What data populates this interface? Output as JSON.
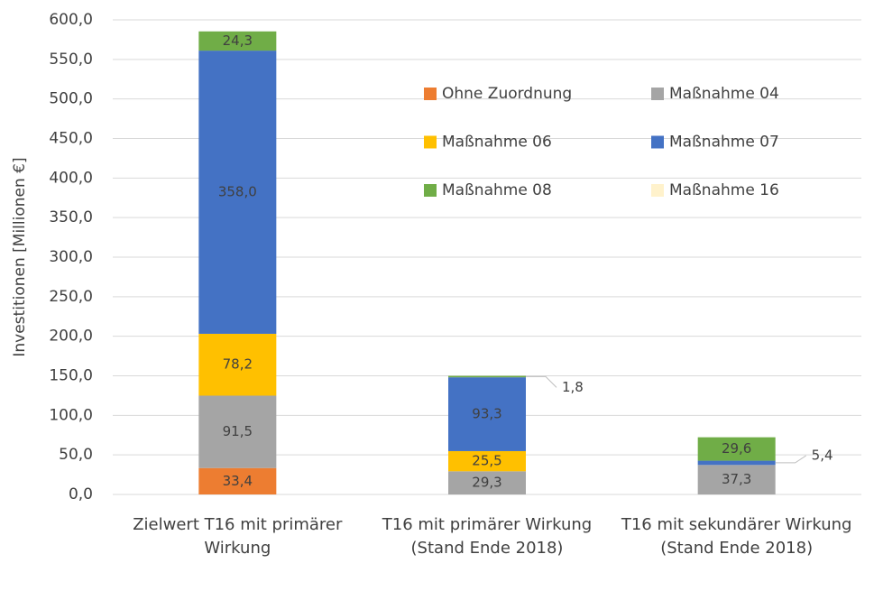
{
  "chart_data": {
    "type": "bar",
    "stacked": true,
    "y_label": "Investitionen [Millionen €]",
    "categories": [
      "Zielwert T16 mit primärer Wirkung",
      "T16 mit primärer Wirkung (Stand Ende 2018)",
      "T16 mit sekundärer Wirkung (Stand Ende 2018)"
    ],
    "series": [
      {
        "name": "Ohne Zuordnung",
        "color": "#ed7d31",
        "values": [
          33.4,
          null,
          null
        ],
        "value_labels": [
          "33,4",
          null,
          null
        ]
      },
      {
        "name": "Maßnahme 04",
        "color": "#a5a5a5",
        "values": [
          91.5,
          29.3,
          37.3
        ],
        "value_labels": [
          "91,5",
          "29,3",
          "37,3"
        ]
      },
      {
        "name": "Maßnahme 06",
        "color": "#ffc000",
        "values": [
          78.2,
          25.5,
          null
        ],
        "value_labels": [
          "78,2",
          "25,5",
          null
        ]
      },
      {
        "name": "Maßnahme 07",
        "color": "#4472c4",
        "values": [
          358.0,
          93.3,
          5.4
        ],
        "value_labels": [
          "358,0",
          "93,3",
          "5,4"
        ]
      },
      {
        "name": "Maßnahme 08",
        "color": "#70ad47",
        "values": [
          24.3,
          1.8,
          29.6
        ],
        "value_labels": [
          "24,3",
          "1,8",
          "29,6"
        ]
      },
      {
        "name": "Maßnahme 16",
        "color": "#fff2cc",
        "values": [
          null,
          null,
          null
        ]
      }
    ],
    "ylim": [
      0,
      600
    ],
    "yticks": [
      {
        "value": 0,
        "label": "0,0"
      },
      {
        "value": 50,
        "label": "50,0"
      },
      {
        "value": 100,
        "label": "100,0"
      },
      {
        "value": 150,
        "label": "150,0"
      },
      {
        "value": 200,
        "label": "200,0"
      },
      {
        "value": 250,
        "label": "250,0"
      },
      {
        "value": 300,
        "label": "300,0"
      },
      {
        "value": 350,
        "label": "350,0"
      },
      {
        "value": 400,
        "label": "400,0"
      },
      {
        "value": 450,
        "label": "450,0"
      },
      {
        "value": 500,
        "label": "500,0"
      },
      {
        "value": 550,
        "label": "550,0"
      },
      {
        "value": 600,
        "label": "600,0"
      }
    ],
    "grid": true,
    "legend": "inside top right"
  }
}
